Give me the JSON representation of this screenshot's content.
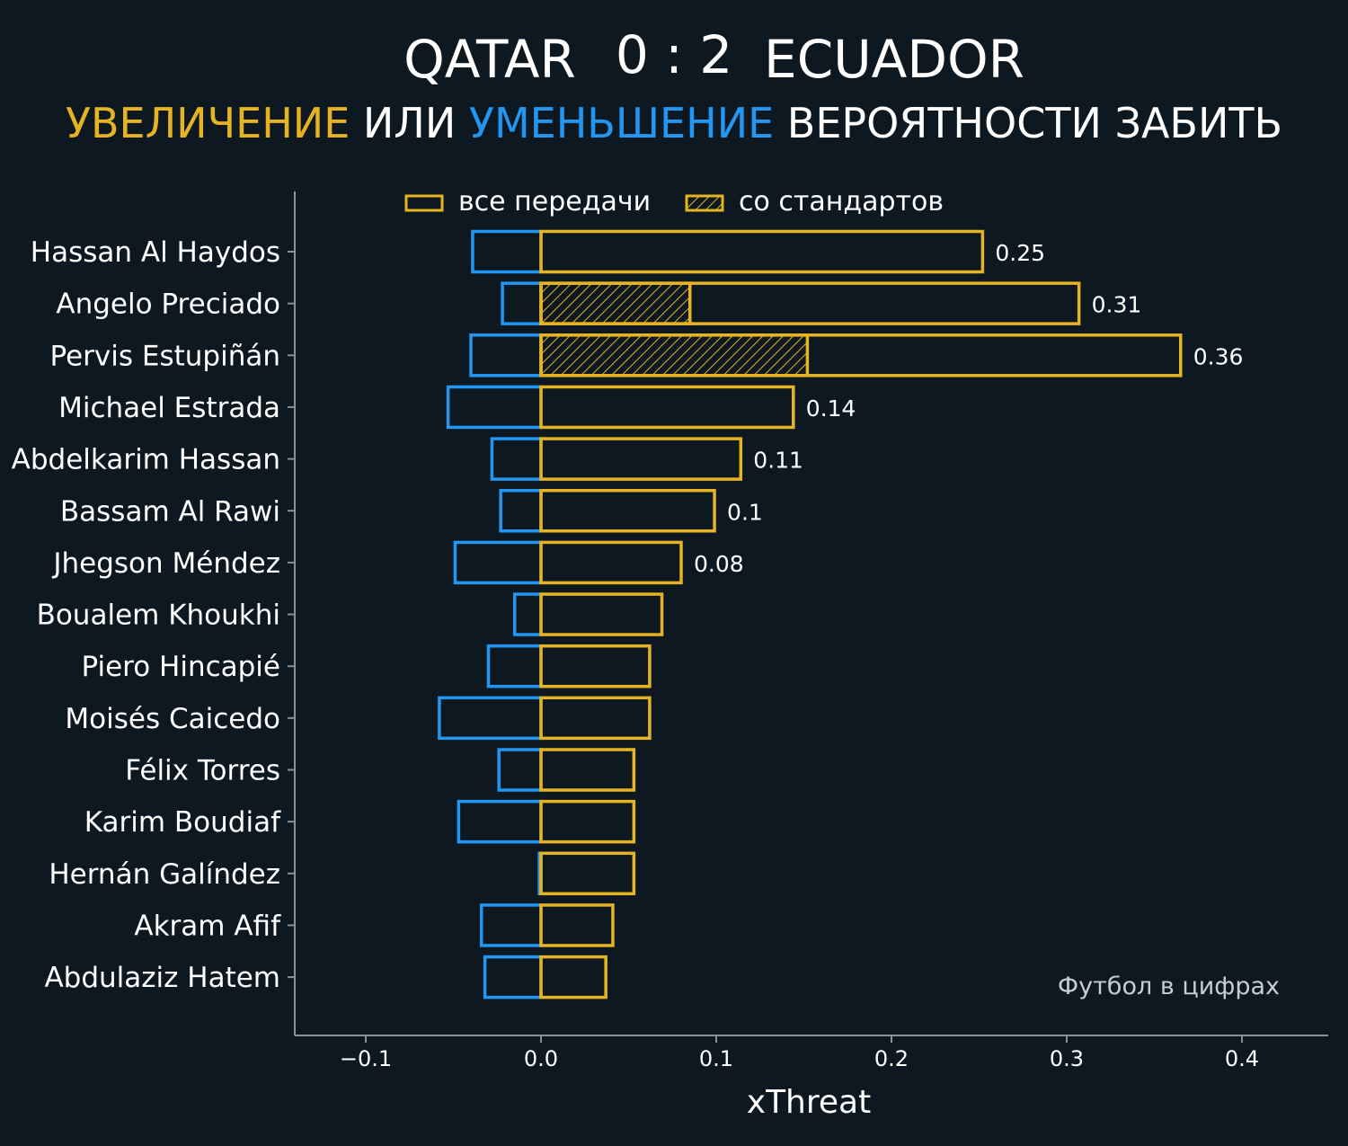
{
  "header": {
    "team_home": "QATAR",
    "score": "0 : 2",
    "team_away": "ECUADOR",
    "subtitle_parts": [
      {
        "text": "УВЕЛИЧЕНИЕ",
        "color": "#e6b422"
      },
      {
        "text": " ИЛИ ",
        "color": "#ffffff"
      },
      {
        "text": "УМЕНЬШЕНИЕ",
        "color": "#2196f3"
      },
      {
        "text": " ВЕРОЯТНОСТИ ЗАБИТЬ",
        "color": "#ffffff"
      }
    ]
  },
  "legend": {
    "all_passes": "все передачи",
    "set_pieces": "со стандартов"
  },
  "watermark": "Футбол в цифрах",
  "colors": {
    "background": "#0e1820",
    "positive": "#e6b422",
    "negative": "#2196f3",
    "axis": "#8a9299"
  },
  "chart_data": {
    "type": "bar",
    "orientation": "horizontal",
    "xlabel": "xThreat",
    "xlim": [
      -0.14,
      0.44
    ],
    "xticks": [
      -0.1,
      0.0,
      0.1,
      0.2,
      0.3,
      0.4
    ],
    "xtick_labels": [
      "−0.1",
      "0.0",
      "0.1",
      "0.2",
      "0.3",
      "0.4"
    ],
    "legend_position": "top-center",
    "categories": [
      "Hassan Al Haydos",
      "Angelo Preciado",
      "Pervis Estupiñán",
      "Michael Estrada",
      "Abdelkarim Hassan",
      "Bassam Al Rawi",
      "Jhegson Méndez",
      "Boualem Khoukhi",
      "Piero Hincapié",
      "Moisés Caicedo",
      "Félix Torres",
      "Karim Boudiaf",
      "Hernán Galíndez",
      "Akram Afif",
      "Abdulaziz Hatem"
    ],
    "series": [
      {
        "name": "все передачи",
        "values": [
          0.252,
          0.307,
          0.365,
          0.144,
          0.114,
          0.099,
          0.08,
          0.069,
          0.062,
          0.062,
          0.053,
          0.053,
          0.053,
          0.041,
          0.037
        ]
      },
      {
        "name": "со стандартов",
        "values": [
          0,
          0.085,
          0.152,
          0,
          0,
          0,
          0,
          0,
          0,
          0,
          0,
          0,
          0,
          0,
          0
        ]
      },
      {
        "values": [
          -0.039,
          -0.022,
          -0.04,
          -0.053,
          -0.028,
          -0.023,
          -0.049,
          -0.015,
          -0.03,
          -0.058,
          -0.024,
          -0.047,
          -0.001,
          -0.034,
          -0.032
        ]
      }
    ],
    "data_labels": [
      "0.25",
      "0.31",
      "0.36",
      "0.14",
      "0.11",
      "0.1",
      "0.08",
      "",
      "",
      "",
      "",
      "",
      "",
      "",
      ""
    ]
  }
}
